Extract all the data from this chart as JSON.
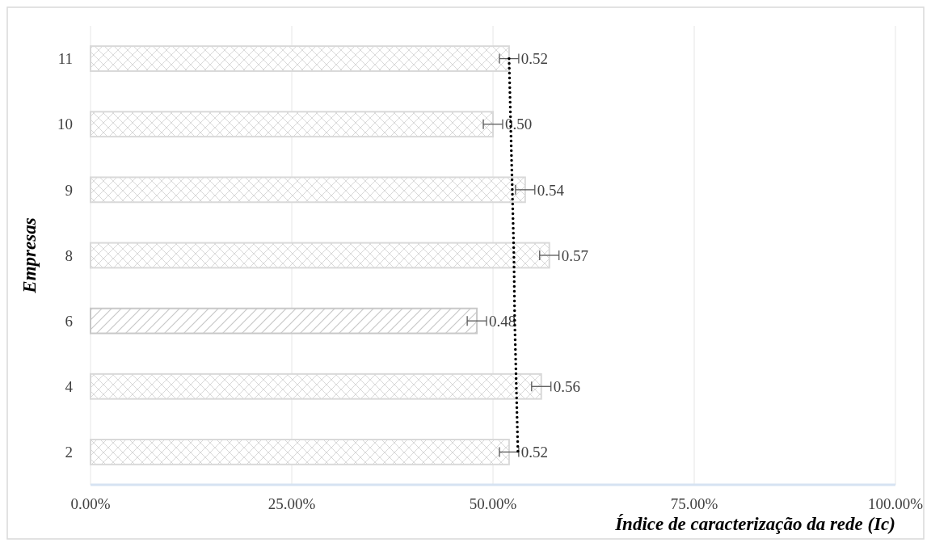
{
  "chart_data": {
    "type": "bar",
    "orientation": "horizontal",
    "xlabel": "Índice de caracterização da rede (Ic)",
    "ylabel": "Empresas",
    "categories": [
      "11",
      "10",
      "9",
      "8",
      "6",
      "4",
      "2"
    ],
    "series": [
      {
        "colors": [
          "#d9d9d9",
          "#d9d9d9",
          "#d9d9d9",
          "#d9d9d9",
          "#c8c8c8",
          "#d9d9d9",
          "#d9d9d9"
        ],
        "values": [
          0.52,
          0.5,
          0.54,
          0.57,
          0.48,
          0.56,
          0.52
        ],
        "errors": [
          0.012,
          0.012,
          0.012,
          0.012,
          0.012,
          0.012,
          0.012
        ],
        "value_labels": [
          "0.52",
          "0.50",
          "0.54",
          "0.57",
          "0.48",
          "0.56",
          "0.52"
        ]
      },
      {
        "type": "line",
        "color": "#000000",
        "line_style": "dotted",
        "values": [
          0.52,
          0.522,
          0.524,
          0.526,
          0.527,
          0.529,
          0.531
        ]
      }
    ],
    "xlim": [
      0,
      1
    ],
    "xticks": [
      {
        "value": 0,
        "label": "0.00%"
      },
      {
        "value": 0.25,
        "label": "25.00%"
      },
      {
        "value": 0.5,
        "label": "50.00%"
      },
      {
        "value": 0.75,
        "label": "75.00%"
      },
      {
        "value": 1,
        "label": "100.00%"
      }
    ],
    "grid": "x"
  }
}
